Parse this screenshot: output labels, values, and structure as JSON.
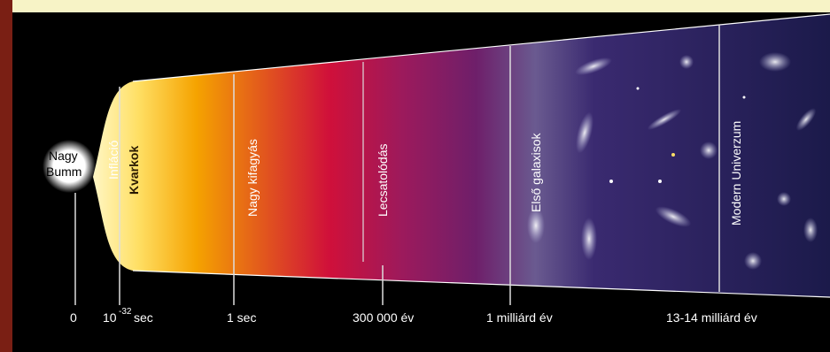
{
  "labels": {
    "big_bang_line1": "Nagy",
    "big_bang_line2": "Bumm",
    "inflation": "Infláció",
    "quarks": "Kvarkok",
    "freezeout": "Nagy kifagyás",
    "decoupling": "Lecsatolódás",
    "first_galaxies": "Első galaxisok",
    "modern_universe": "Modern Univerzum"
  },
  "timeline": {
    "t0": "0",
    "t1_base": "10",
    "t1_exp": "-32",
    "t1_unit": "sec",
    "t2": "1 sec",
    "t3": "300 000 év",
    "t4": "1 milliárd év",
    "t5": "13-14 milliárd év"
  },
  "colors": {
    "frame": "#7a1f14",
    "top_band": "#f7f3c6",
    "background": "#000000",
    "fire_yellow": "#ffe066",
    "fire_orange": "#f5a300",
    "fire_red": "#d0103a",
    "plasma_magenta": "#8a1b6a",
    "space_purple": "#3a2a70",
    "space_deep": "#1b1a4a"
  }
}
